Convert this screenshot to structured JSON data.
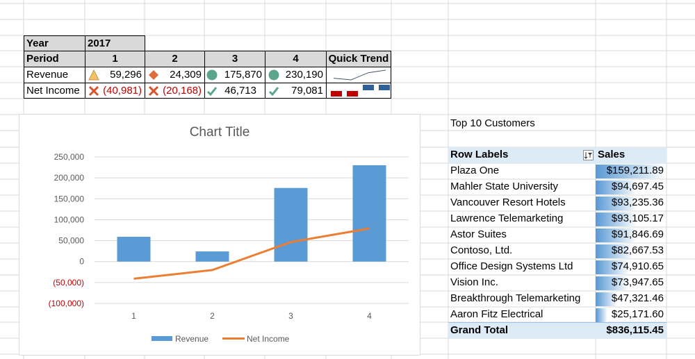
{
  "kpi_table": {
    "year_label": "Year",
    "year_value": "2017",
    "period_label": "Period",
    "periods": [
      "1",
      "2",
      "3",
      "4"
    ],
    "quick_trend_label": "Quick Trend",
    "revenue_label": "Revenue",
    "revenue": [
      {
        "icon": "triangle-yellow-icon",
        "text": "59,296"
      },
      {
        "icon": "diamond-orange-icon",
        "text": "24,309"
      },
      {
        "icon": "circle-green-icon",
        "text": "175,870"
      },
      {
        "icon": "circle-green-icon",
        "text": "230,190"
      }
    ],
    "net_income_label": "Net Income",
    "net_income": [
      {
        "icon": "x-red-icon",
        "text": "(40,981)",
        "negative": true
      },
      {
        "icon": "x-red-icon",
        "text": "(20,168)",
        "negative": true
      },
      {
        "icon": "check-green-icon",
        "text": "46,713",
        "negative": false
      },
      {
        "icon": "check-green-icon",
        "text": "79,081",
        "negative": false
      }
    ],
    "revenue_sparkline": [
      59296,
      24309,
      175870,
      230190
    ],
    "net_income_winloss": [
      -1,
      -1,
      1,
      1
    ]
  },
  "chart_data": {
    "type": "bar",
    "title": "Chart Title",
    "categories": [
      "1",
      "2",
      "3",
      "4"
    ],
    "series": [
      {
        "name": "Revenue",
        "type": "bar",
        "values": [
          59296,
          24309,
          175870,
          230190
        ],
        "color": "#5b9bd5"
      },
      {
        "name": "Net Income",
        "type": "line",
        "values": [
          -40981,
          -20168,
          46713,
          79081
        ],
        "color": "#ed7d31"
      }
    ],
    "ylim": [
      -100000,
      250000
    ],
    "yticks": [
      {
        "value": 250000,
        "label": "250,000",
        "negative": false
      },
      {
        "value": 200000,
        "label": "200,000",
        "negative": false
      },
      {
        "value": 150000,
        "label": "150,000",
        "negative": false
      },
      {
        "value": 100000,
        "label": "100,000",
        "negative": false
      },
      {
        "value": 50000,
        "label": "50,000",
        "negative": false
      },
      {
        "value": 0,
        "label": "0",
        "negative": false
      },
      {
        "value": -50000,
        "label": "(50,000)",
        "negative": true
      },
      {
        "value": -100000,
        "label": "(100,000)",
        "negative": true
      }
    ],
    "grid": true,
    "legend": "bottom"
  },
  "pivot": {
    "caption": "Top 10 Customers",
    "row_labels_header": "Row Labels",
    "sales_header": "Sales",
    "rows": [
      {
        "name": "Plaza One",
        "sales": "$159,211.89",
        "value": 159211.89
      },
      {
        "name": "Mahler State University",
        "sales": "$94,697.45",
        "value": 94697.45
      },
      {
        "name": "Vancouver Resort Hotels",
        "sales": "$93,235.36",
        "value": 93235.36
      },
      {
        "name": "Lawrence Telemarketing",
        "sales": "$93,105.17",
        "value": 93105.17
      },
      {
        "name": "Astor Suites",
        "sales": "$91,846.69",
        "value": 91846.69
      },
      {
        "name": "Contoso, Ltd.",
        "sales": "$82,667.53",
        "value": 82667.53
      },
      {
        "name": "Office Design Systems Ltd",
        "sales": "$74,910.65",
        "value": 74910.65
      },
      {
        "name": "Vision Inc.",
        "sales": "$73,947.65",
        "value": 73947.65
      },
      {
        "name": "Breakthrough Telemarketing",
        "sales": "$47,321.46",
        "value": 47321.46
      },
      {
        "name": "Aaron Fitz Electrical",
        "sales": "$25,171.60",
        "value": 25171.6
      }
    ],
    "grand_total_label": "Grand Total",
    "grand_total": "$836,115.45"
  },
  "colors": {
    "gridline": "#d9d9d9",
    "header_fill": "#d9d9d9",
    "pivot_header_fill": "#ddebf7",
    "databar": "#5b9bd5",
    "negative": "#c00000"
  }
}
